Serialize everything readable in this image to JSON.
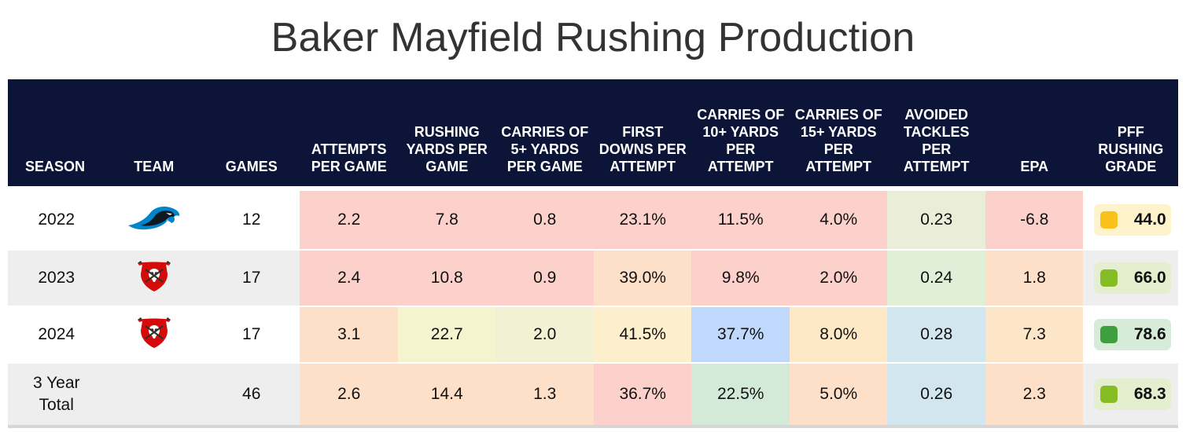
{
  "title": "Baker Mayfield Rushing Production",
  "headers": [
    {
      "label": "SEASON"
    },
    {
      "label": "TEAM"
    },
    {
      "label": "GAMES"
    },
    {
      "label": "ATTEMPTS PER GAME"
    },
    {
      "label": "RUSHING YARDS PER GAME"
    },
    {
      "label": "CARRIES OF 5+ YARDS PER GAME"
    },
    {
      "label": "FIRST DOWNS PER ATTEMPT"
    },
    {
      "label": "CARRIES OF 10+ YARDS PER ATTEMPT"
    },
    {
      "label": "CARRIES OF 15+ YARDS PER ATTEMPT"
    },
    {
      "label": "AVOIDED TACKLES PER ATTEMPT"
    },
    {
      "label": "EPA"
    },
    {
      "label": "PFF RUSHING GRADE"
    }
  ],
  "rows": [
    {
      "season": "2022",
      "team_logo": "carolina-panthers-logo-icon",
      "games": "12",
      "cells": [
        "2.2",
        "7.8",
        "0.8",
        "23.1%",
        "11.5%",
        "4.0%",
        "0.23",
        "-6.8"
      ],
      "cell_colors": [
        "#fdd1cb",
        "#fdd1cb",
        "#fdd1cb",
        "#fdd1cb",
        "#fdd1cb",
        "#fdd1cb",
        "#eaeed8",
        "#fdd1cb"
      ],
      "grade": "44.0",
      "grade_box_color": "#fff3cc",
      "grade_dot_color": "#f8c21a",
      "row_bg": "#ffffff"
    },
    {
      "season": "2023",
      "team_logo": "tampa-bay-buccaneers-logo-icon",
      "games": "17",
      "cells": [
        "2.4",
        "10.8",
        "0.9",
        "39.0%",
        "9.8%",
        "2.0%",
        "0.24",
        "1.8"
      ],
      "cell_colors": [
        "#fdd1cb",
        "#fdd1cb",
        "#fdd1cb",
        "#fde0c7",
        "#fdd1cb",
        "#fdd1cb",
        "#e2efd8",
        "#fde0c7"
      ],
      "grade": "66.0",
      "grade_box_color": "#e5efd0",
      "grade_dot_color": "#86bd24",
      "row_bg": "#eeeeee"
    },
    {
      "season": "2024",
      "team_logo": "tampa-bay-buccaneers-logo-icon",
      "games": "17",
      "cells": [
        "3.1",
        "22.7",
        "2.0",
        "41.5%",
        "37.7%",
        "8.0%",
        "0.28",
        "7.3"
      ],
      "cell_colors": [
        "#fde0c7",
        "#f6f3cf",
        "#f2f1d3",
        "#fdeecc",
        "#bfd8fb",
        "#fde9c6",
        "#d1e6ee",
        "#fde6c8"
      ],
      "grade": "78.6",
      "grade_box_color": "#d6ecd9",
      "grade_dot_color": "#3f9e3e",
      "row_bg": "#ffffff"
    },
    {
      "season": "3 Year Total",
      "team_logo": "",
      "games": "46",
      "cells": [
        "2.6",
        "14.4",
        "1.3",
        "36.7%",
        "22.5%",
        "5.0%",
        "0.26",
        "2.3"
      ],
      "cell_colors": [
        "#fde0c7",
        "#fde0c7",
        "#fde0c7",
        "#fdd1cb",
        "#d4ead9",
        "#fde0c7",
        "#d1e6ee",
        "#fde0c7"
      ],
      "grade": "68.3",
      "grade_box_color": "#e5efd0",
      "grade_dot_color": "#86bd24",
      "row_bg": "#eeeeee"
    }
  ],
  "colors": {
    "header_bg": "#0c1538",
    "header_text": "#ffffff"
  }
}
